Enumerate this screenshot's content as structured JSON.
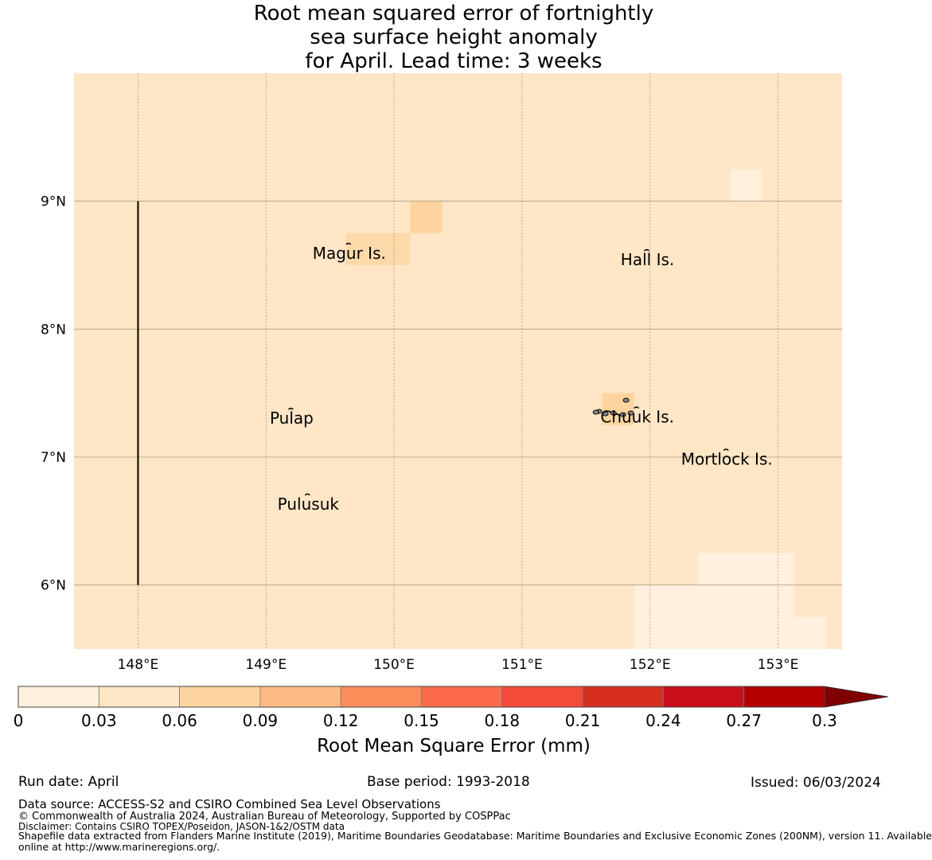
{
  "title": {
    "line1": "Root mean squared error of fortnightly",
    "line2": "sea surface height anomaly",
    "line3": "for April. Lead time: 3 weeks"
  },
  "map": {
    "lon_range": [
      147.5,
      153.5
    ],
    "lat_range": [
      5.5,
      10.0
    ],
    "lon_ticks": [
      148,
      149,
      150,
      151,
      152,
      153
    ],
    "lon_tick_labels": [
      "148°E",
      "149°E",
      "150°E",
      "151°E",
      "152°E",
      "153°E"
    ],
    "lat_ticks": [
      6,
      7,
      8,
      9
    ],
    "lat_tick_labels": [
      "6°N",
      "7°N",
      "8°N",
      "9°N"
    ],
    "background_color": "#fee6c6",
    "cells": [
      {
        "lon": [
          150.125,
          150.375
        ],
        "lat": [
          8.75,
          9.0
        ],
        "color": "#fdd49e"
      },
      {
        "lon": [
          149.625,
          150.125
        ],
        "lat": [
          8.5,
          8.75
        ],
        "color": "#fdd8a9"
      },
      {
        "lon": [
          152.625,
          152.875
        ],
        "lat": [
          9.0,
          9.25
        ],
        "color": "#fff0dc"
      },
      {
        "lon": [
          151.625,
          151.875
        ],
        "lat": [
          7.25,
          7.5
        ],
        "color": "#fdd49e"
      },
      {
        "lon": [
          152.375,
          153.125
        ],
        "lat": [
          6.0,
          6.25
        ],
        "color": "#fff1de"
      },
      {
        "lon": [
          151.875,
          153.125
        ],
        "lat": [
          5.5,
          6.0
        ],
        "color": "#fff1de"
      },
      {
        "lon": [
          153.125,
          153.375
        ],
        "lat": [
          5.5,
          5.75
        ],
        "color": "#fff1de"
      }
    ],
    "boundary_line": {
      "lon": 148.0,
      "lat": [
        6.0,
        9.0
      ]
    },
    "islands": [
      {
        "name": "Magur Is.",
        "lon": 149.65,
        "lat": 8.55
      },
      {
        "name": "Hall Is.",
        "lon": 151.98,
        "lat": 8.5
      },
      {
        "name": "Pulap",
        "lon": 149.2,
        "lat": 7.26
      },
      {
        "name": "Chuuk Is.",
        "lon": 151.9,
        "lat": 7.27
      },
      {
        "name": "Mortlock Is.",
        "lon": 152.6,
        "lat": 6.94
      },
      {
        "name": "Pulusuk",
        "lon": 149.33,
        "lat": 6.59
      }
    ]
  },
  "colorbar": {
    "label": "Root Mean Square Error (mm)",
    "ticks": [
      "0",
      "0.03",
      "0.06",
      "0.09",
      "0.12",
      "0.15",
      "0.18",
      "0.21",
      "0.24",
      "0.27",
      "0.3"
    ],
    "colors": [
      "#fff1de",
      "#fee6c6",
      "#fdd49e",
      "#fdbb84",
      "#fc8d59",
      "#fc6b4b",
      "#f44a3a",
      "#d62f20",
      "#c9101a",
      "#b30000"
    ],
    "extend_color": "#7f0000"
  },
  "footer": {
    "run_date": "Run date: April",
    "base_period": "Base period: 1993-2018",
    "issued": "Issued: 06/03/2024",
    "data_source": "Data source: ACCESS-S2 and CSIRO Combined Sea Level Observations",
    "copyright": "© Commonwealth of Australia 2024, Australian Bureau of Meteorology, Supported by COSPPac",
    "disclaimer": "Disclaimer: Contains CSIRO TOPEX/Poseidon, JASON-1&2/OSTM data",
    "shapefile_line1": "Shapefile data extracted from Flanders Marine Institute (2019), Maritime Boundaries Geodatabase: Maritime Boundaries and Exclusive Economic Zones (200NM), version 11. Available",
    "shapefile_line2": "online at http://www.marineregions.org/."
  }
}
